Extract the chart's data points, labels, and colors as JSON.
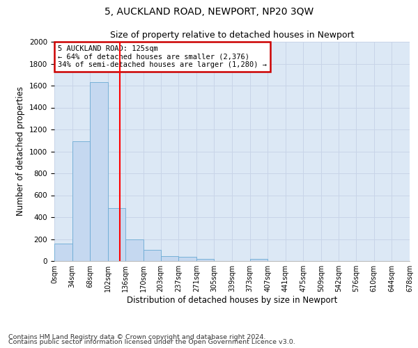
{
  "title1": "5, AUCKLAND ROAD, NEWPORT, NP20 3QW",
  "title2": "Size of property relative to detached houses in Newport",
  "xlabel": "Distribution of detached houses by size in Newport",
  "ylabel": "Number of detached properties",
  "footer1": "Contains HM Land Registry data © Crown copyright and database right 2024.",
  "footer2": "Contains public sector information licensed under the Open Government Licence v3.0.",
  "annotation_title": "5 AUCKLAND ROAD: 125sqm",
  "annotation_line1": "← 64% of detached houses are smaller (2,376)",
  "annotation_line2": "34% of semi-detached houses are larger (1,280) →",
  "property_size": 125,
  "bin_edges": [
    0,
    34,
    68,
    102,
    136,
    170,
    203,
    237,
    271,
    305,
    339,
    373,
    407,
    441,
    475,
    509,
    542,
    576,
    610,
    644,
    678
  ],
  "bar_heights": [
    160,
    1090,
    1630,
    480,
    200,
    100,
    45,
    35,
    20,
    0,
    0,
    20,
    0,
    0,
    0,
    0,
    0,
    0,
    0,
    0
  ],
  "bar_color": "#c5d8f0",
  "bar_edge_color": "#6aaad4",
  "red_line_x": 125,
  "ylim": [
    0,
    2000
  ],
  "yticks": [
    0,
    200,
    400,
    600,
    800,
    1000,
    1200,
    1400,
    1600,
    1800,
    2000
  ],
  "grid_color": "#c8d4e8",
  "axes_background": "#dce8f5",
  "fig_background": "#ffffff",
  "annotation_box_color": "#ffffff",
  "annotation_box_edge": "#cc0000",
  "title1_fontsize": 10,
  "title2_fontsize": 9,
  "tick_label_fontsize": 7,
  "ylabel_fontsize": 8.5,
  "xlabel_fontsize": 8.5,
  "footer_fontsize": 6.8
}
